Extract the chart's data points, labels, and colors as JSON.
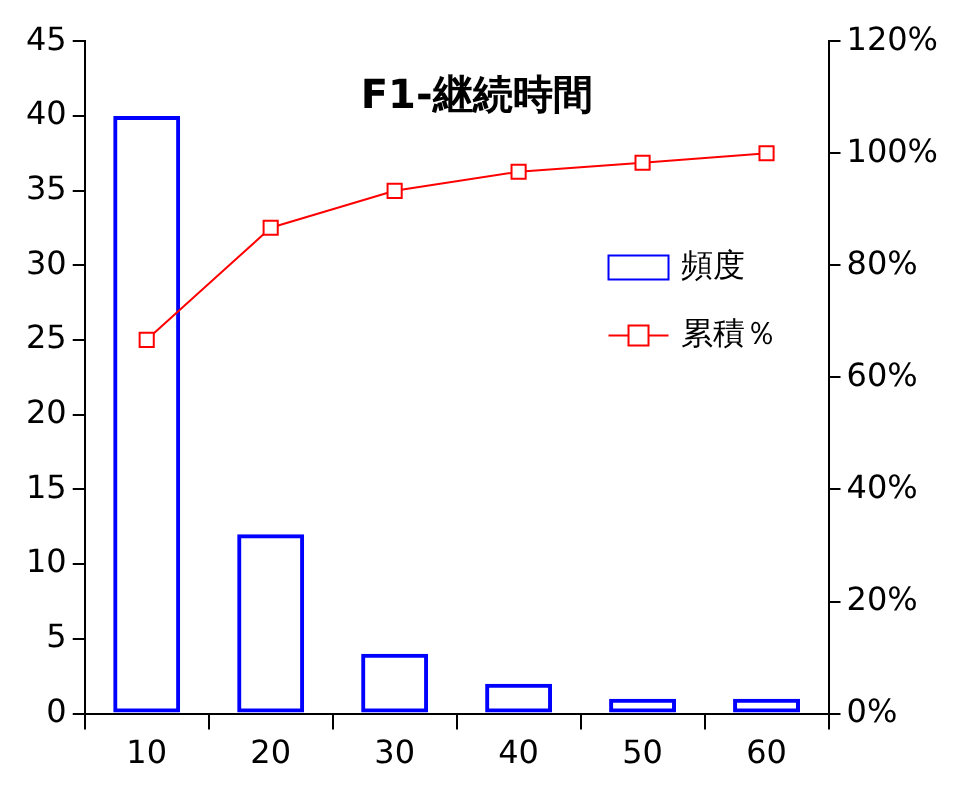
{
  "chart_data": {
    "type": "bar",
    "title": "F1-継続時間",
    "categories": [
      "10",
      "20",
      "30",
      "40",
      "50",
      "60"
    ],
    "series": [
      {
        "name": "頻度",
        "type": "bar",
        "color": "#0000ff",
        "values": [
          40,
          12,
          4,
          2,
          1,
          1
        ]
      },
      {
        "name": "累積％",
        "type": "line",
        "axis": "y2",
        "color": "#ff0000",
        "marker": "square",
        "values": [
          66.7,
          86.7,
          93.3,
          96.7,
          98.3,
          100
        ]
      }
    ],
    "ylim": [
      0,
      45
    ],
    "yticks": [
      0,
      5,
      10,
      15,
      20,
      25,
      30,
      35,
      40,
      45
    ],
    "y2lim": [
      0,
      120
    ],
    "y2ticks": [
      {
        "value": 0,
        "label": "0%"
      },
      {
        "value": 20,
        "label": "20%"
      },
      {
        "value": 40,
        "label": "40%"
      },
      {
        "value": 60,
        "label": "60%"
      },
      {
        "value": 80,
        "label": "80%"
      },
      {
        "value": 100,
        "label": "100%"
      },
      {
        "value": 120,
        "label": "120%"
      }
    ],
    "grid": false,
    "legend": "right"
  }
}
